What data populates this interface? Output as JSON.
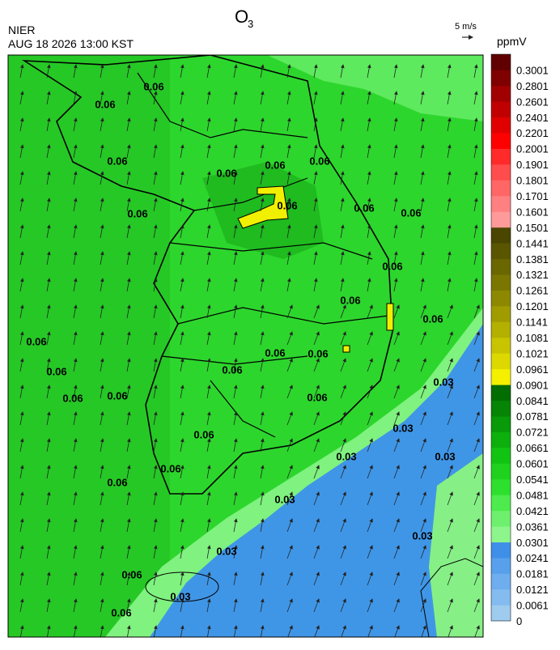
{
  "header": {
    "agency": "NIER",
    "datetime": "AUG 18 2026 13:00 KST",
    "title": "O",
    "title_subscript": "3",
    "wind_scale": "5 m/s"
  },
  "legend": {
    "unit": "ppmV",
    "labels": [
      0,
      0.0061,
      0.0121,
      0.0181,
      0.0241,
      0.0301,
      0.0361,
      0.0421,
      0.0481,
      0.0541,
      0.0601,
      0.0661,
      0.0721,
      0.0781,
      0.0841,
      0.0901,
      0.0961,
      0.1021,
      0.1081,
      0.1141,
      0.1201,
      0.1261,
      0.1321,
      0.1381,
      0.1441,
      0.1501,
      0.1601,
      0.1701,
      0.1801,
      0.1901,
      0.2001,
      0.2201,
      0.2401,
      0.2601,
      0.2801,
      0.3001
    ],
    "colors": [
      "#9ecbee",
      "#84bcef",
      "#6eaeee",
      "#58a0ec",
      "#3f8fe9",
      "#8cf58c",
      "#6ef06e",
      "#4deb4d",
      "#2ee02e",
      "#1ed21e",
      "#12c412",
      "#0cb00c",
      "#089a08",
      "#058405",
      "#026e02",
      "#f5f000",
      "#dcd800",
      "#c8c400",
      "#b4b000",
      "#a09c00",
      "#8c8800",
      "#7a7600",
      "#6a6600",
      "#5a5600",
      "#4a4600",
      "#ff9a9a",
      "#ff8080",
      "#ff6666",
      "#ff4c4c",
      "#ff2a2a",
      "#ff0000",
      "#e00000",
      "#c00000",
      "#a00000",
      "#800000",
      "#600000"
    ]
  },
  "map": {
    "contour_labels": [
      "0.06",
      "0.06",
      "0.06",
      "0.06",
      "0.06",
      "0.06",
      "0.06",
      "0.06",
      "0.06",
      "0.06",
      "0.06",
      "0.06",
      "0.06",
      "0.06",
      "0.06",
      "0.06",
      "0.06",
      "0.06",
      "0.06",
      "0.06",
      "0.06",
      "0.06",
      "0.06",
      "0.06",
      "0.06",
      "0.06",
      "0.03",
      "0.03",
      "0.03",
      "0.03",
      "0.03",
      "0.03",
      "0.03",
      "0.03"
    ]
  }
}
